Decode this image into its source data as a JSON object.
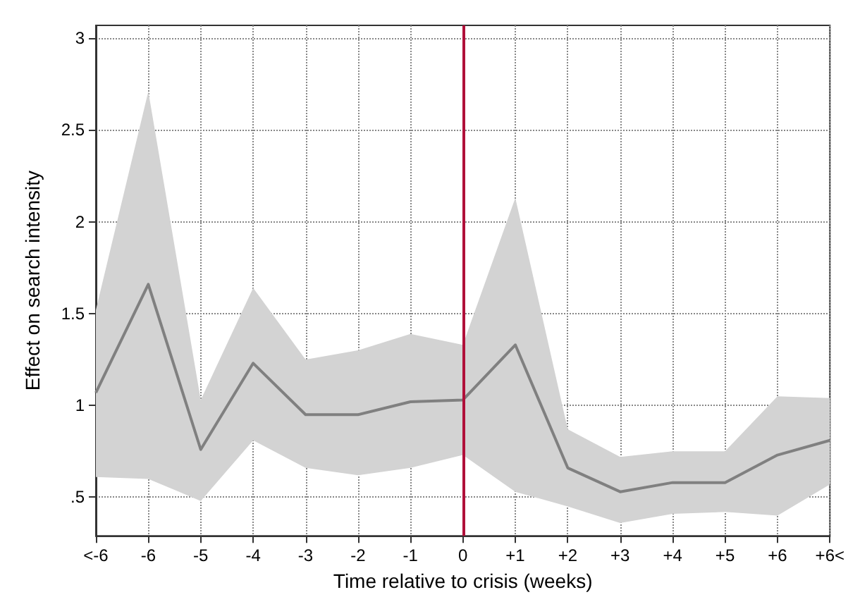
{
  "chart_data": {
    "type": "line",
    "xlabel": "Time relative to crisis (weeks)",
    "ylabel": "Effect on search intensity",
    "categories": [
      "<-6",
      "-6",
      "-5",
      "-4",
      "-3",
      "-2",
      "-1",
      "0",
      "+1",
      "+2",
      "+3",
      "+4",
      "+5",
      "+6",
      "+6<"
    ],
    "series": [
      {
        "color": "#808080",
        "values": [
          1.07,
          1.66,
          0.76,
          1.23,
          0.95,
          0.95,
          1.02,
          1.03,
          1.33,
          0.66,
          0.53,
          0.58,
          0.58,
          0.73,
          0.81
        ],
        "lower": [
          0.61,
          0.6,
          0.48,
          0.81,
          0.66,
          0.62,
          0.66,
          0.73,
          0.53,
          0.45,
          0.36,
          0.41,
          0.42,
          0.4,
          0.57
        ],
        "upper": [
          1.52,
          2.71,
          1.03,
          1.64,
          1.25,
          1.3,
          1.39,
          1.33,
          2.13,
          0.87,
          0.72,
          0.75,
          0.75,
          1.05,
          1.04
        ]
      }
    ],
    "ylim": [
      0.29,
      3.07
    ],
    "yticks": [
      {
        "value": 0.5,
        "label": ".5"
      },
      1,
      1.5,
      2,
      2.5,
      3
    ],
    "grid": true,
    "line_style": "solid",
    "marker": "none",
    "ref_lines": [
      {
        "axis": "x",
        "value": "0",
        "color": "#b0103a"
      }
    ]
  }
}
